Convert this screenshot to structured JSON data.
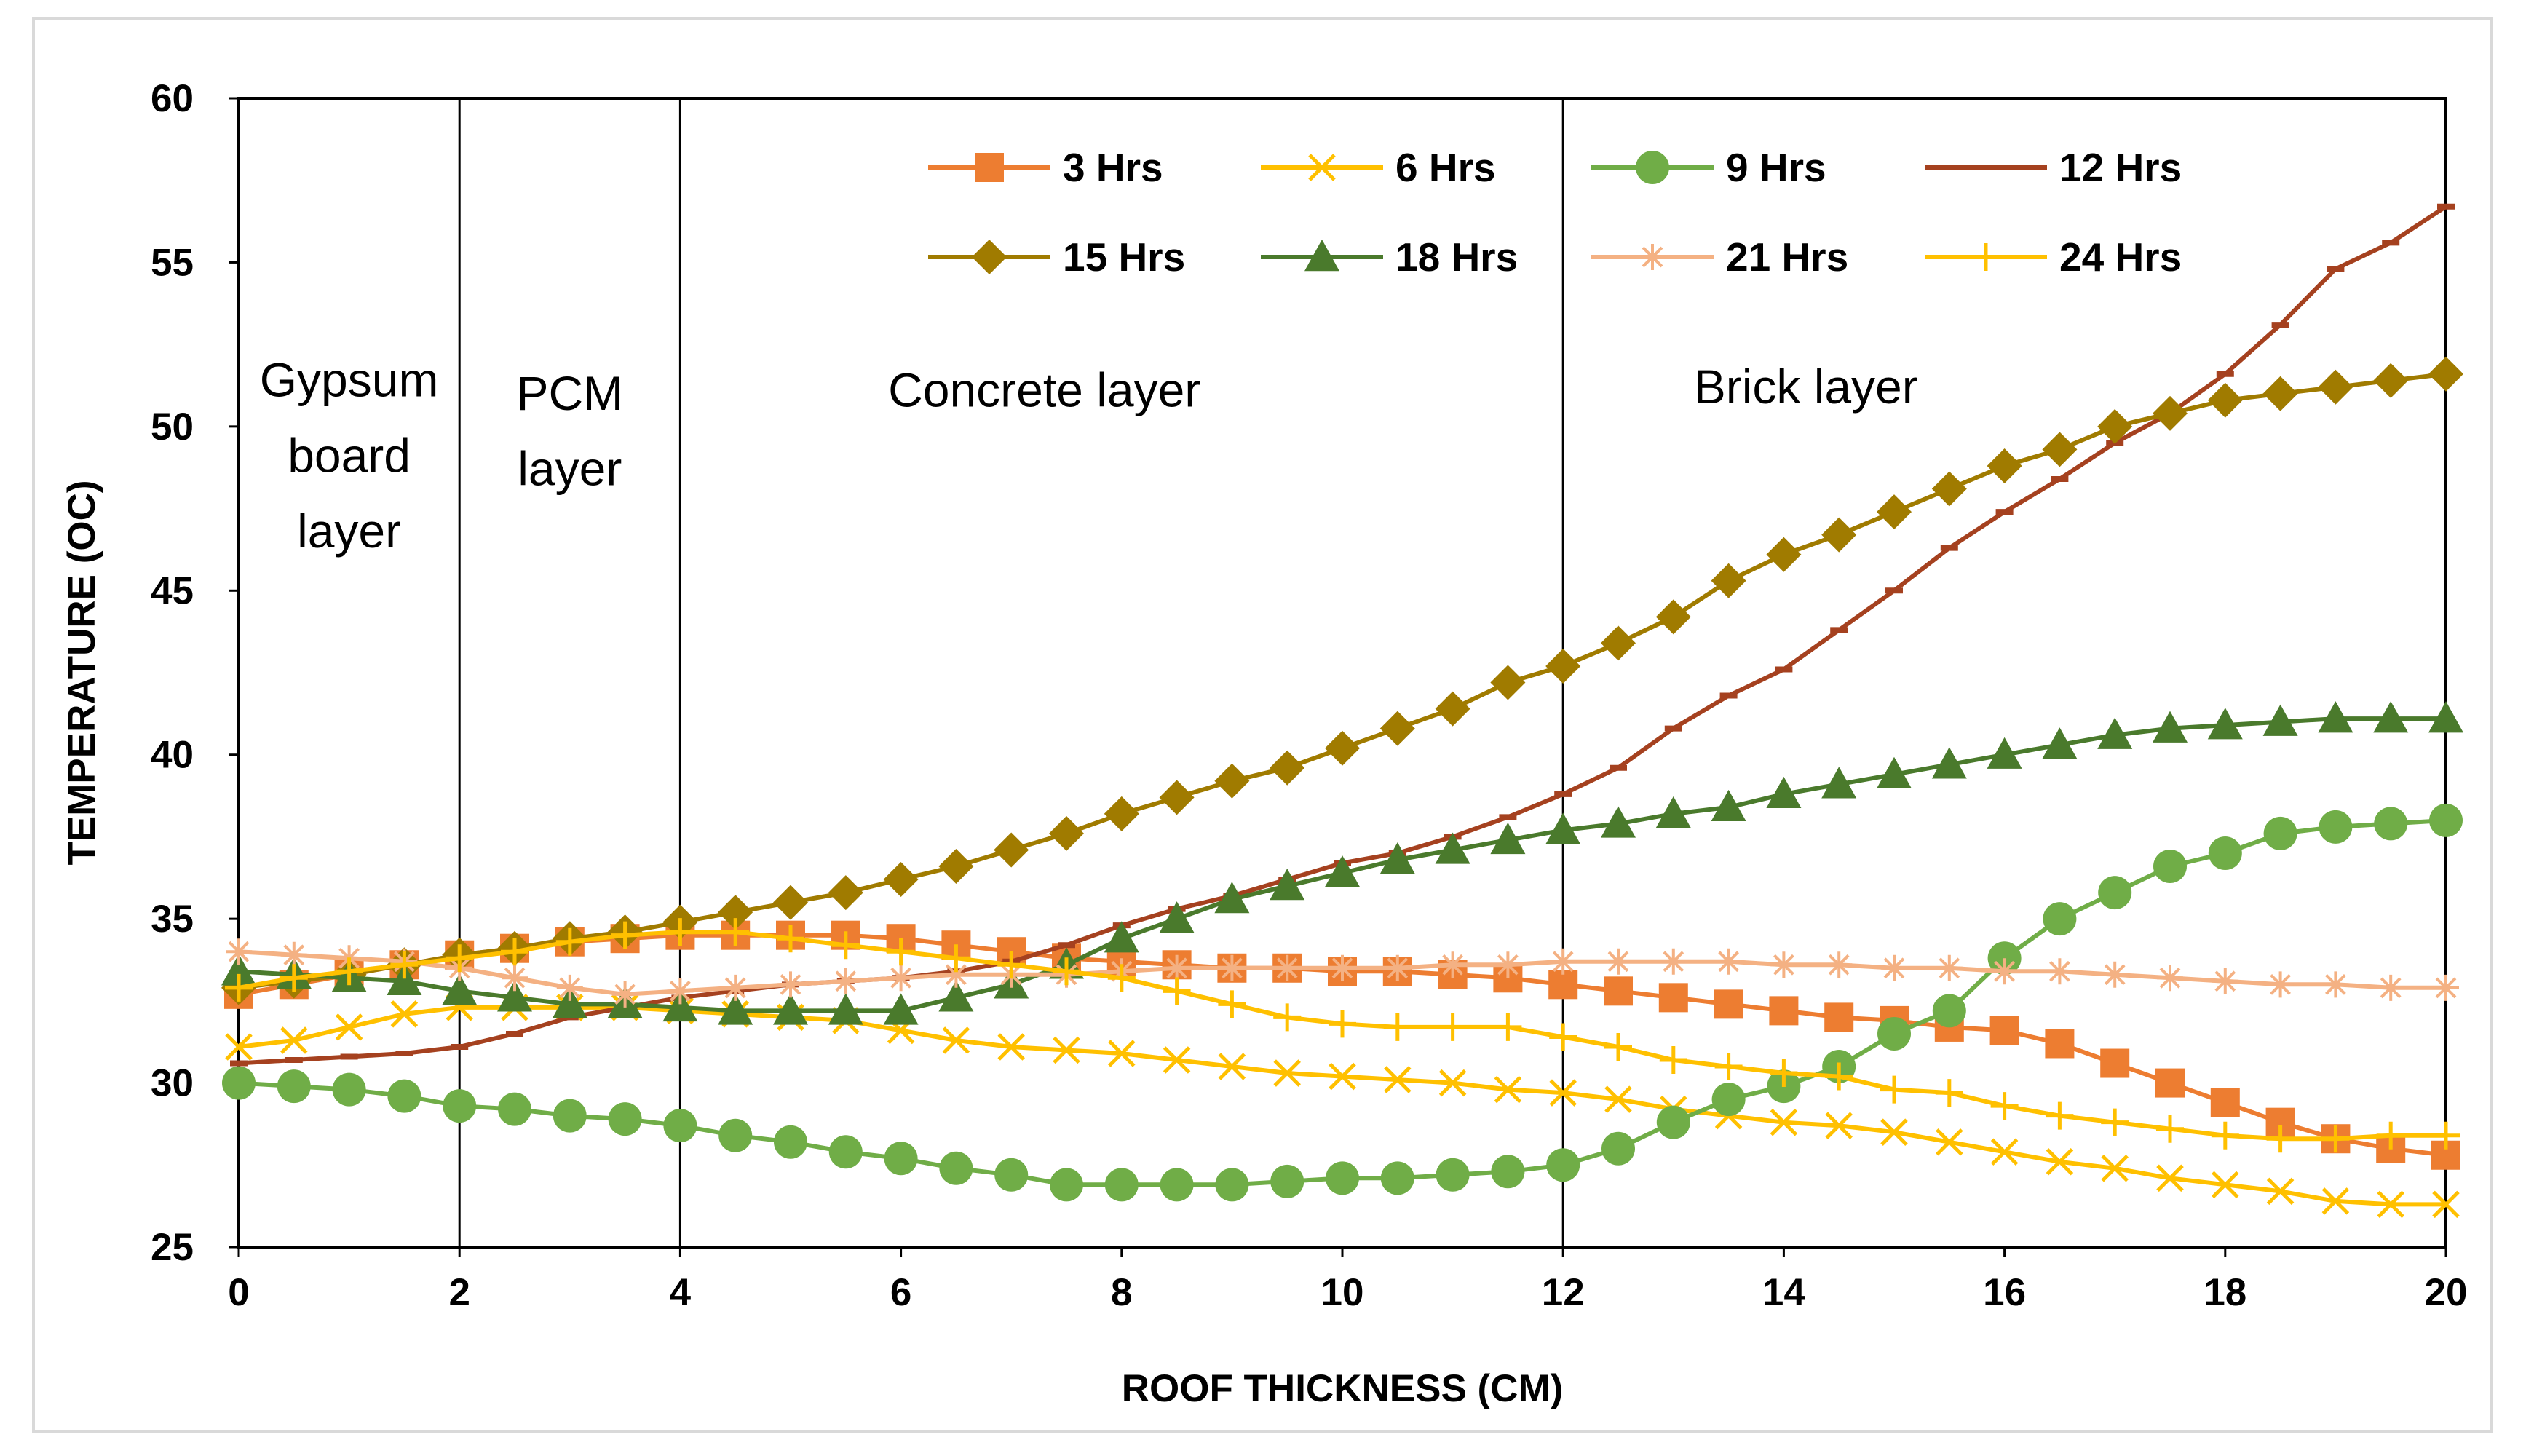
{
  "chart_data": {
    "type": "line",
    "title": "",
    "xlabel": "ROOF THICKNESS (CM)",
    "ylabel": "TEMPERATURE (OC)",
    "xlim": [
      0,
      20
    ],
    "ylim": [
      25,
      60
    ],
    "xticks": [
      "0",
      "2",
      "4",
      "6",
      "8",
      "10",
      "12",
      "14",
      "16",
      "18",
      "20"
    ],
    "yticks": [
      "25",
      "30",
      "35",
      "40",
      "45",
      "50",
      "55",
      "60"
    ],
    "legend_position": "top",
    "layer_boundaries": [
      2,
      4,
      12
    ],
    "regions": [
      {
        "lines": [
          "Gypsum",
          "board",
          "layer"
        ],
        "x": 1,
        "y": [
          51.4,
          49.1,
          46.8
        ]
      },
      {
        "lines": [
          "PCM",
          "layer"
        ],
        "x": 3,
        "y": [
          51.0,
          48.7
        ]
      },
      {
        "lines": [
          "Concrete layer"
        ],
        "x": 7.3,
        "y": [
          51.1
        ]
      },
      {
        "lines": [
          "Brick layer"
        ],
        "x": 14.2,
        "y": [
          51.2
        ]
      }
    ],
    "x": [
      0,
      0.5,
      1,
      1.5,
      2,
      2.5,
      3,
      3.5,
      4,
      4.5,
      5,
      5.5,
      6,
      6.5,
      7,
      7.5,
      8,
      8.5,
      9,
      9.5,
      10,
      10.5,
      11,
      11.5,
      12,
      12.5,
      13,
      13.5,
      14,
      14.5,
      15,
      15.5,
      16,
      16.5,
      17,
      17.5,
      18,
      18.5,
      19,
      19.5,
      20
    ],
    "series": [
      {
        "name": "3 Hrs",
        "color": "#ed7d31",
        "marker": "square",
        "values": [
          32.7,
          33.0,
          33.3,
          33.6,
          33.9,
          34.1,
          34.3,
          34.4,
          34.5,
          34.5,
          34.5,
          34.5,
          34.4,
          34.2,
          34.0,
          33.8,
          33.7,
          33.6,
          33.5,
          33.5,
          33.4,
          33.4,
          33.3,
          33.2,
          33.0,
          32.8,
          32.6,
          32.4,
          32.2,
          32.0,
          31.9,
          31.7,
          31.6,
          31.2,
          30.6,
          30.0,
          29.4,
          28.8,
          28.3,
          28.0,
          27.8
        ]
      },
      {
        "name": "6 Hrs",
        "color": "#ffc000",
        "marker": "x",
        "values": [
          31.1,
          31.3,
          31.7,
          32.1,
          32.3,
          32.3,
          32.3,
          32.3,
          32.2,
          32.1,
          32.0,
          31.9,
          31.6,
          31.3,
          31.1,
          31.0,
          30.9,
          30.7,
          30.5,
          30.3,
          30.2,
          30.1,
          30.0,
          29.8,
          29.7,
          29.5,
          29.2,
          29.0,
          28.8,
          28.7,
          28.5,
          28.2,
          27.9,
          27.6,
          27.4,
          27.1,
          26.9,
          26.7,
          26.4,
          26.3,
          26.3
        ]
      },
      {
        "name": "9 Hrs",
        "color": "#70ad47",
        "marker": "circle",
        "values": [
          30.0,
          29.9,
          29.8,
          29.6,
          29.3,
          29.2,
          29.0,
          28.9,
          28.7,
          28.4,
          28.2,
          27.9,
          27.7,
          27.4,
          27.2,
          26.9,
          26.9,
          26.9,
          26.9,
          27.0,
          27.1,
          27.1,
          27.2,
          27.3,
          27.5,
          28.0,
          28.8,
          29.5,
          29.9,
          30.5,
          31.5,
          32.2,
          33.8,
          35.0,
          35.8,
          36.6,
          37.0,
          37.6,
          37.8,
          37.9,
          38.0
        ]
      },
      {
        "name": "12 Hrs",
        "color": "#a5411f",
        "marker": "dash",
        "values": [
          30.6,
          30.7,
          30.8,
          30.9,
          31.1,
          31.5,
          32.0,
          32.3,
          32.6,
          32.8,
          33.0,
          33.1,
          33.2,
          33.4,
          33.7,
          34.2,
          34.8,
          35.3,
          35.7,
          36.2,
          36.7,
          37.0,
          37.5,
          38.1,
          38.8,
          39.6,
          40.8,
          41.8,
          42.6,
          43.8,
          45.0,
          46.3,
          47.4,
          48.4,
          49.5,
          50.4,
          51.6,
          53.1,
          54.8,
          55.6,
          56.7
        ]
      },
      {
        "name": "15 Hrs",
        "color": "#a07b00",
        "marker": "diamond",
        "values": [
          32.9,
          33.1,
          33.3,
          33.6,
          33.9,
          34.1,
          34.4,
          34.6,
          34.9,
          35.2,
          35.5,
          35.8,
          36.2,
          36.6,
          37.1,
          37.6,
          38.2,
          38.7,
          39.2,
          39.6,
          40.2,
          40.8,
          41.4,
          42.2,
          42.7,
          43.4,
          44.2,
          45.3,
          46.1,
          46.7,
          47.4,
          48.1,
          48.8,
          49.3,
          50.0,
          50.4,
          50.8,
          51.0,
          51.2,
          51.4,
          51.6
        ]
      },
      {
        "name": "18 Hrs",
        "color": "#4a7a2c",
        "marker": "triangle",
        "values": [
          33.4,
          33.3,
          33.2,
          33.1,
          32.8,
          32.6,
          32.4,
          32.4,
          32.3,
          32.2,
          32.2,
          32.2,
          32.2,
          32.6,
          33.0,
          33.6,
          34.4,
          35.0,
          35.6,
          36.0,
          36.4,
          36.8,
          37.1,
          37.4,
          37.7,
          37.9,
          38.2,
          38.4,
          38.8,
          39.1,
          39.4,
          39.7,
          40.0,
          40.3,
          40.6,
          40.8,
          40.9,
          41.0,
          41.1,
          41.1,
          41.1
        ]
      },
      {
        "name": "21 Hrs",
        "color": "#f4b183",
        "marker": "asterisk",
        "values": [
          34.0,
          33.9,
          33.8,
          33.7,
          33.5,
          33.2,
          32.9,
          32.7,
          32.8,
          32.9,
          33.0,
          33.1,
          33.2,
          33.3,
          33.3,
          33.3,
          33.4,
          33.5,
          33.5,
          33.5,
          33.5,
          33.5,
          33.6,
          33.6,
          33.7,
          33.7,
          33.7,
          33.7,
          33.6,
          33.6,
          33.5,
          33.5,
          33.4,
          33.4,
          33.3,
          33.2,
          33.1,
          33.0,
          33.0,
          32.9,
          32.9
        ]
      },
      {
        "name": "24 Hrs",
        "color": "#ffc000",
        "marker": "plus",
        "values": [
          32.9,
          33.2,
          33.4,
          33.6,
          33.8,
          34.0,
          34.3,
          34.5,
          34.6,
          34.6,
          34.4,
          34.2,
          34.0,
          33.8,
          33.6,
          33.4,
          33.2,
          32.8,
          32.4,
          32.0,
          31.8,
          31.7,
          31.7,
          31.7,
          31.4,
          31.1,
          30.7,
          30.5,
          30.3,
          30.2,
          29.8,
          29.7,
          29.3,
          29.0,
          28.8,
          28.6,
          28.4,
          28.3,
          28.3,
          28.4,
          28.4
        ]
      }
    ]
  }
}
